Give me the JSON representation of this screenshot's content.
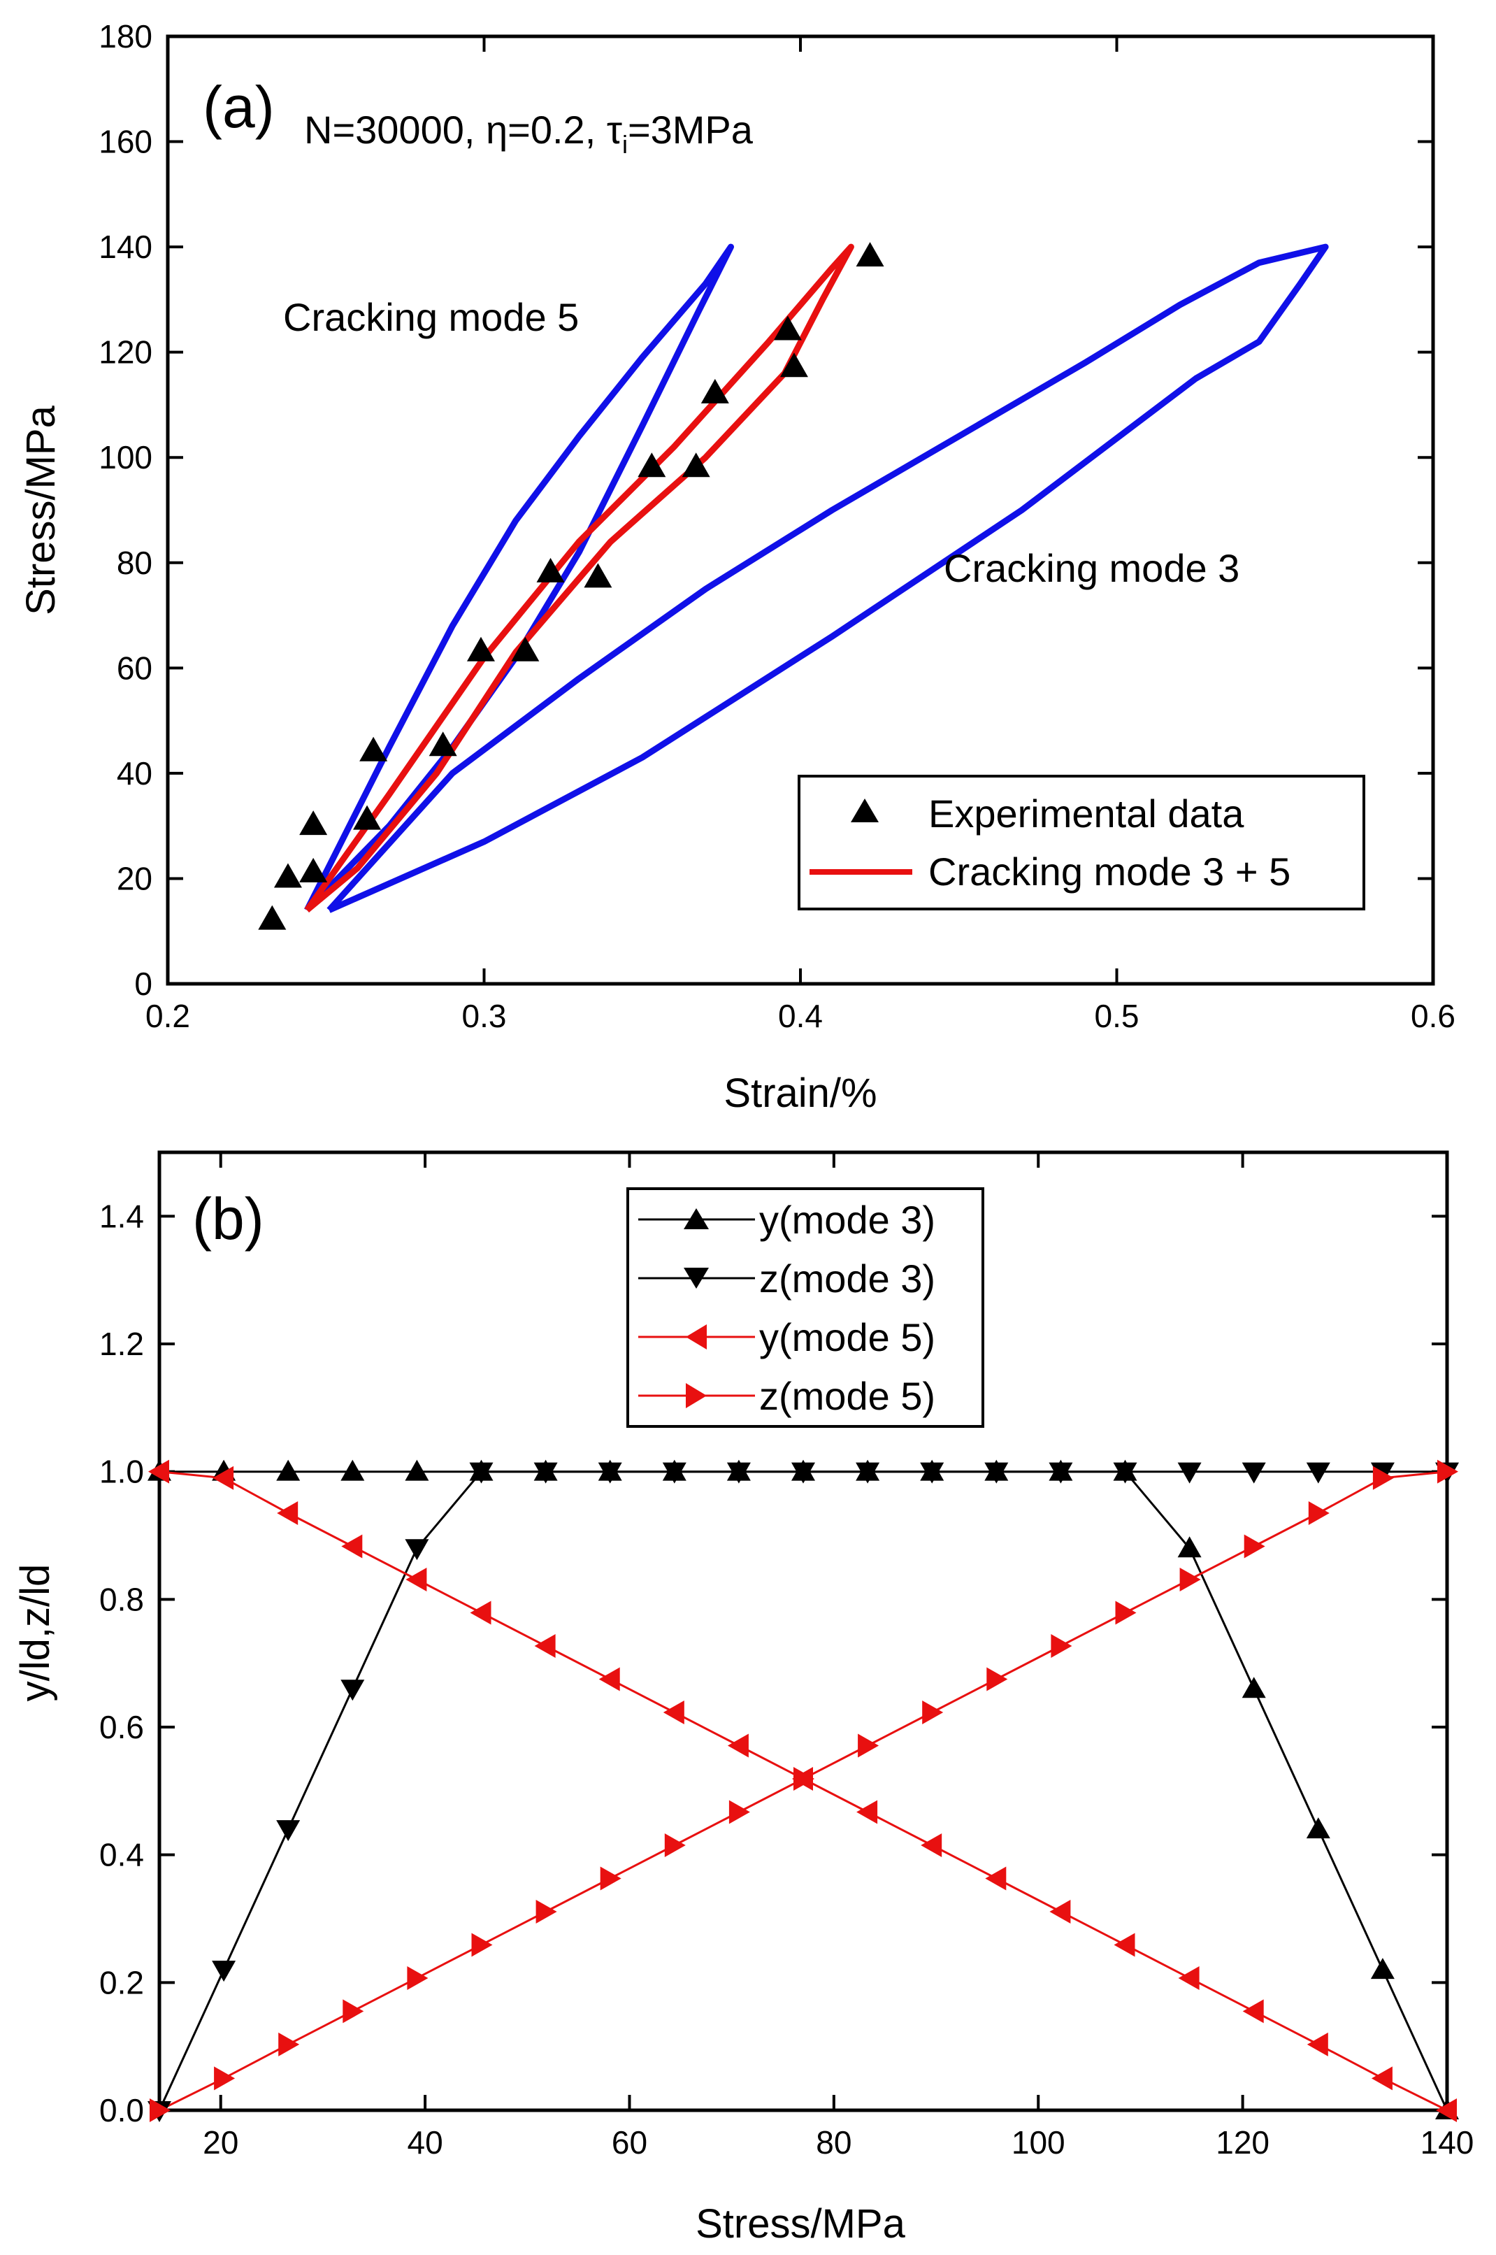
{
  "chart_data": [
    {
      "panel": "(a)",
      "type": "line",
      "title": "",
      "xlabel": "Strain/%",
      "ylabel": "Stress/MPa",
      "xlim": [
        0.2,
        0.6
      ],
      "ylim": [
        0,
        180
      ],
      "xticks": [
        0.2,
        0.3,
        0.4,
        0.5,
        0.6
      ],
      "yticks": [
        0,
        20,
        40,
        60,
        80,
        100,
        120,
        140,
        160,
        180
      ],
      "params_text": {
        "n": "N=30000, ",
        "eta": "η",
        "eta_val": "=0.2, ",
        "tau": "τ",
        "tau_sub": "i",
        "tau_val": "=3MPa"
      },
      "annotations": [
        "Cracking mode 5",
        "Cracking mode 3"
      ],
      "legend": {
        "position": "bottom-right",
        "entries": [
          "Experimental data",
          "Cracking mode 3 + 5"
        ]
      },
      "colors": {
        "mode5": "#1010e8",
        "mode3": "#1010e8",
        "combined": "#e81010",
        "experimental": "#000000"
      },
      "series": [
        {
          "name": "Cracking mode 5",
          "color": "#1010e8",
          "points": [
            [
              0.244,
              14
            ],
            [
              0.27,
              45
            ],
            [
              0.29,
              68
            ],
            [
              0.31,
              88
            ],
            [
              0.33,
              104
            ],
            [
              0.35,
              119
            ],
            [
              0.37,
              133
            ],
            [
              0.378,
              140
            ],
            [
              0.368,
              128
            ],
            [
              0.35,
              106
            ],
            [
              0.33,
              82
            ],
            [
              0.31,
              62
            ],
            [
              0.29,
              45
            ],
            [
              0.27,
              30
            ],
            [
              0.244,
              14
            ]
          ]
        },
        {
          "name": "Cracking mode 3",
          "color": "#1010e8",
          "points": [
            [
              0.251,
              14
            ],
            [
              0.29,
              40
            ],
            [
              0.33,
              58
            ],
            [
              0.37,
              75
            ],
            [
              0.41,
              90
            ],
            [
              0.45,
              104
            ],
            [
              0.49,
              118
            ],
            [
              0.52,
              129
            ],
            [
              0.545,
              137
            ],
            [
              0.566,
              140
            ],
            [
              0.558,
              133
            ],
            [
              0.545,
              122
            ],
            [
              0.525,
              115
            ],
            [
              0.47,
              90
            ],
            [
              0.41,
              66
            ],
            [
              0.35,
              43
            ],
            [
              0.3,
              27
            ],
            [
              0.251,
              14
            ]
          ]
        },
        {
          "name": "Cracking mode 3 + 5",
          "color": "#e81010",
          "points": [
            [
              0.244,
              14
            ],
            [
              0.27,
              36
            ],
            [
              0.3,
              62
            ],
            [
              0.33,
              84
            ],
            [
              0.36,
              102
            ],
            [
              0.39,
              122
            ],
            [
              0.41,
              136
            ],
            [
              0.416,
              140
            ],
            [
              0.407,
              130
            ],
            [
              0.395,
              116
            ],
            [
              0.37,
              100
            ],
            [
              0.34,
              84
            ],
            [
              0.31,
              63
            ],
            [
              0.285,
              40
            ],
            [
              0.26,
              22
            ],
            [
              0.244,
              14
            ]
          ]
        },
        {
          "name": "Experimental data",
          "color": "#000000",
          "points": [
            [
              0.233,
              12
            ],
            [
              0.238,
              20
            ],
            [
              0.246,
              21
            ],
            [
              0.246,
              30
            ],
            [
              0.265,
              44
            ],
            [
              0.263,
              31
            ],
            [
              0.287,
              45
            ],
            [
              0.299,
              63
            ],
            [
              0.313,
              63
            ],
            [
              0.321,
              78
            ],
            [
              0.336,
              77
            ],
            [
              0.353,
              98
            ],
            [
              0.367,
              98
            ],
            [
              0.373,
              112
            ],
            [
              0.396,
              124
            ],
            [
              0.398,
              117
            ],
            [
              0.422,
              138
            ]
          ]
        }
      ]
    },
    {
      "panel": "(b)",
      "type": "line",
      "title": "",
      "xlabel": "Stress/MPa",
      "ylabel": "y/ld,z/ld",
      "xlim": [
        14,
        140
      ],
      "ylim": [
        0,
        1.5
      ],
      "xticks": [
        20,
        40,
        60,
        80,
        100,
        120,
        140
      ],
      "yticks": [
        0.0,
        0.2,
        0.4,
        0.6,
        0.8,
        1.0,
        1.2,
        1.4
      ],
      "ytick_labels": [
        "0.0",
        "0.2",
        "0.4",
        "0.6",
        "0.8",
        "1.0",
        "1.2",
        "1.4"
      ],
      "legend": {
        "position": "top-center",
        "entries": [
          "y(mode 3)",
          "z(mode 3)",
          "y(mode 5)",
          "z(mode 5)"
        ]
      },
      "x": [
        14,
        20.3,
        26.6,
        32.9,
        39.2,
        45.5,
        51.8,
        58.1,
        64.4,
        70.7,
        77,
        83.3,
        89.6,
        95.9,
        102.2,
        108.5,
        114.8,
        121.1,
        127.4,
        133.7,
        140
      ],
      "series": [
        {
          "name": "y(mode 3)",
          "color": "#000000",
          "marker": "triangle-up",
          "values": [
            1,
            1,
            1,
            1,
            1,
            1,
            1,
            1,
            1,
            1,
            1,
            1,
            1,
            1,
            1,
            1,
            0.88,
            0.66,
            0.44,
            0.22,
            0
          ]
        },
        {
          "name": "z(mode 3)",
          "color": "#000000",
          "marker": "triangle-down",
          "values": [
            0,
            0.22,
            0.44,
            0.66,
            0.88,
            1,
            1,
            1,
            1,
            1,
            1,
            1,
            1,
            1,
            1,
            1,
            1,
            1,
            1,
            1,
            1
          ]
        },
        {
          "name": "y(mode 5)",
          "color": "#e81010",
          "marker": "triangle-left",
          "values": [
            1,
            0.99,
            0.935,
            0.883,
            0.831,
            0.779,
            0.727,
            0.675,
            0.623,
            0.571,
            0.519,
            0.467,
            0.415,
            0.363,
            0.311,
            0.259,
            0.207,
            0.155,
            0.103,
            0.05,
            0
          ]
        },
        {
          "name": "z(mode 5)",
          "color": "#e81010",
          "marker": "triangle-right",
          "values": [
            0,
            0.05,
            0.103,
            0.155,
            0.207,
            0.259,
            0.311,
            0.363,
            0.415,
            0.467,
            0.519,
            0.571,
            0.623,
            0.675,
            0.727,
            0.779,
            0.831,
            0.883,
            0.935,
            0.99,
            1
          ]
        }
      ]
    }
  ]
}
